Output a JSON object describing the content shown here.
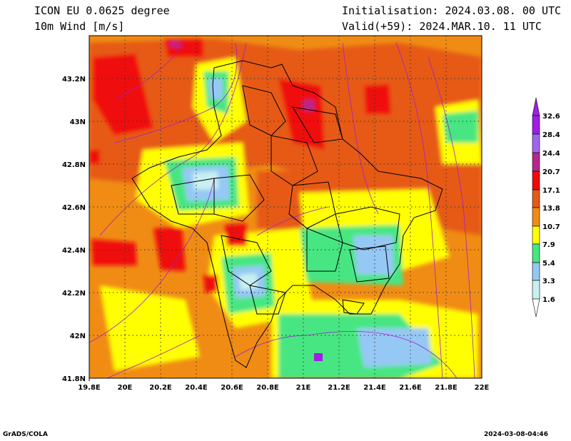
{
  "header": {
    "title_line1": "ICON EU 0.0625 degree",
    "title_line2": "10m Wind [m/s]",
    "init_line": "Initialisation: 2024.03.08. 00 UTC",
    "valid_line": "Valid(+59): 2024.MAR.10. 11 UTC"
  },
  "map": {
    "lon_labels": [
      "19.8E",
      "20E",
      "20.2E",
      "20.4E",
      "20.6E",
      "20.8E",
      "21E",
      "21.2E",
      "21.4E",
      "21.6E",
      "21.8E",
      "22E"
    ],
    "lat_labels": [
      "43.2N",
      "43N",
      "42.8N",
      "42.6N",
      "42.4N",
      "42.2N",
      "42N",
      "41.8N"
    ],
    "lon_range": [
      19.8,
      22.0
    ],
    "lat_range": [
      41.8,
      43.4
    ],
    "gridlines": "dotted"
  },
  "legend": {
    "labels": [
      "32.6",
      "28.4",
      "24.4",
      "20.7",
      "17.1",
      "13.8",
      "10.7",
      "7.9",
      "5.4",
      "3.3",
      "1.6"
    ],
    "colors": [
      "#a01ee6",
      "#a064f0",
      "#b4288c",
      "#f00a0a",
      "#e65a14",
      "#f08c14",
      "#ffff00",
      "#46e682",
      "#96c8f5",
      "#c8f0f0"
    ]
  },
  "footer": {
    "left": "GrADS/COLA",
    "right": "2024-03-08-04:46"
  }
}
